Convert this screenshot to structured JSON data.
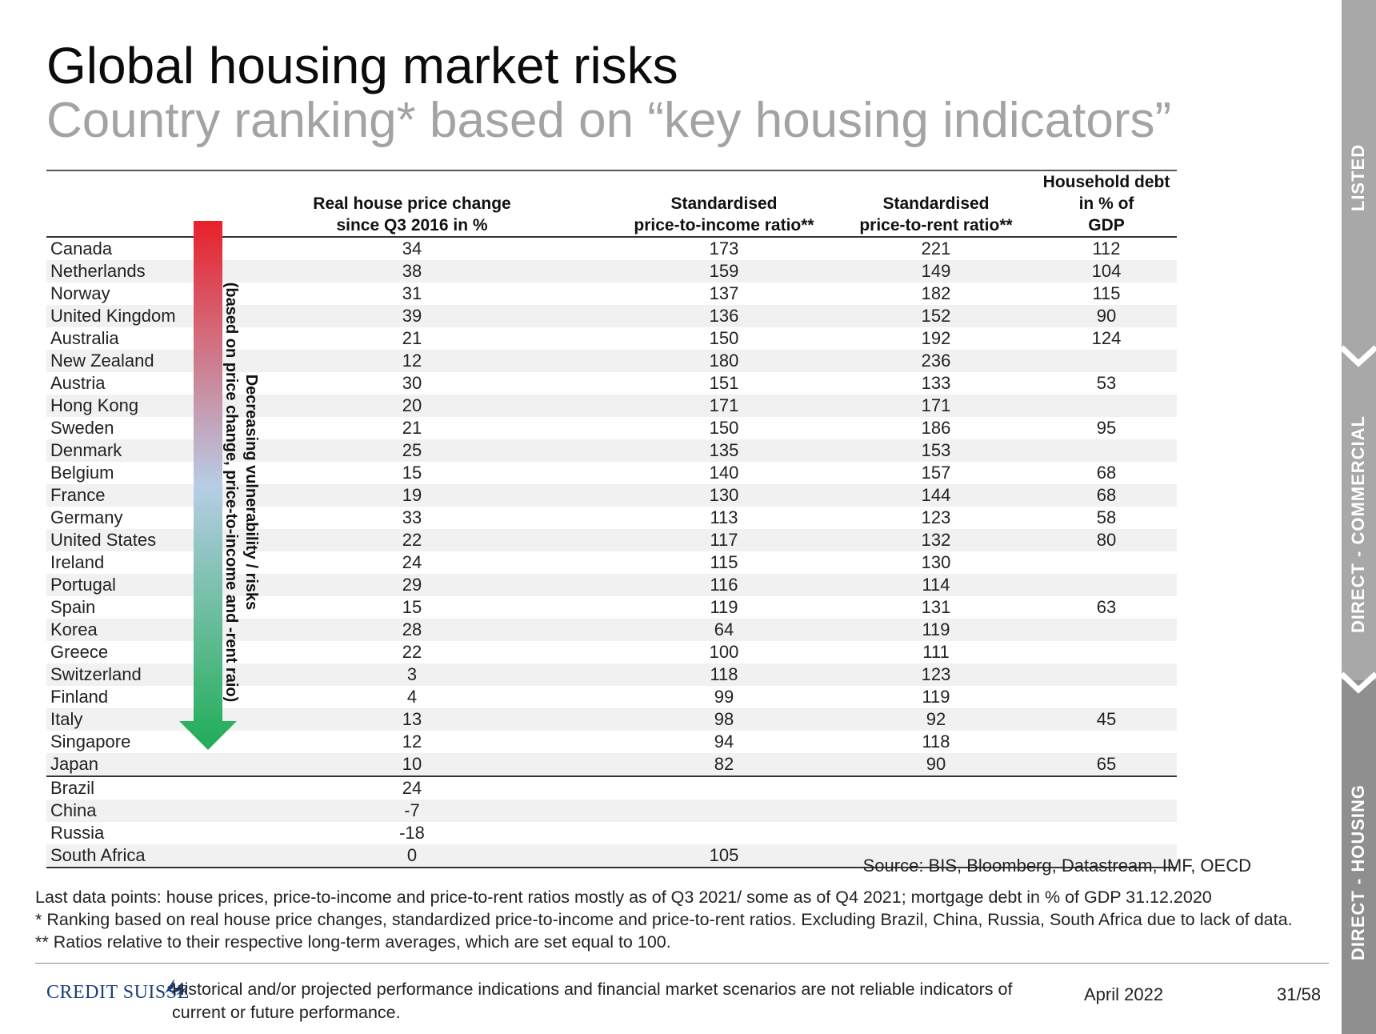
{
  "title": "Global housing market risks",
  "subtitle": "Country ranking* based on “key housing indicators”",
  "table": {
    "headers": [
      {
        "line1": "",
        "line2": ""
      },
      {
        "line1": "Real house price change",
        "line2": "since Q3 2016 in %"
      },
      {
        "line1": "Standardised",
        "line2": "price-to-income ratio**"
      },
      {
        "line1": "Standardised",
        "line2": "price-to-rent ratio**"
      },
      {
        "line1": "Household debt in % of",
        "line2": "GDP"
      }
    ],
    "rows": [
      {
        "country": "Canada",
        "price_change": "34",
        "pti": "173",
        "ptr": "221",
        "debt": "112"
      },
      {
        "country": "Netherlands",
        "price_change": "38",
        "pti": "159",
        "ptr": "149",
        "debt": "104"
      },
      {
        "country": "Norway",
        "price_change": "31",
        "pti": "137",
        "ptr": "182",
        "debt": "115"
      },
      {
        "country": "United Kingdom",
        "price_change": "39",
        "pti": "136",
        "ptr": "152",
        "debt": "90"
      },
      {
        "country": "Australia",
        "price_change": "21",
        "pti": "150",
        "ptr": "192",
        "debt": "124"
      },
      {
        "country": "New Zealand",
        "price_change": "12",
        "pti": "180",
        "ptr": "236",
        "debt": ""
      },
      {
        "country": "Austria",
        "price_change": "30",
        "pti": "151",
        "ptr": "133",
        "debt": "53"
      },
      {
        "country": "Hong Kong",
        "price_change": "20",
        "pti": "171",
        "ptr": "171",
        "debt": ""
      },
      {
        "country": "Sweden",
        "price_change": "21",
        "pti": "150",
        "ptr": "186",
        "debt": "95"
      },
      {
        "country": "Denmark",
        "price_change": "25",
        "pti": "135",
        "ptr": "153",
        "debt": ""
      },
      {
        "country": "Belgium",
        "price_change": "15",
        "pti": "140",
        "ptr": "157",
        "debt": "68"
      },
      {
        "country": "France",
        "price_change": "19",
        "pti": "130",
        "ptr": "144",
        "debt": "68"
      },
      {
        "country": "Germany",
        "price_change": "33",
        "pti": "113",
        "ptr": "123",
        "debt": "58"
      },
      {
        "country": "United States",
        "price_change": "22",
        "pti": "117",
        "ptr": "132",
        "debt": "80"
      },
      {
        "country": "Ireland",
        "price_change": "24",
        "pti": "115",
        "ptr": "130",
        "debt": ""
      },
      {
        "country": "Portugal",
        "price_change": "29",
        "pti": "116",
        "ptr": "114",
        "debt": ""
      },
      {
        "country": "Spain",
        "price_change": "15",
        "pti": "119",
        "ptr": "131",
        "debt": "63"
      },
      {
        "country": "Korea",
        "price_change": "28",
        "pti": "64",
        "ptr": "119",
        "debt": ""
      },
      {
        "country": "Greece",
        "price_change": "22",
        "pti": "100",
        "ptr": "111",
        "debt": ""
      },
      {
        "country": "Switzerland",
        "price_change": "3",
        "pti": "118",
        "ptr": "123",
        "debt": ""
      },
      {
        "country": "Finland",
        "price_change": "4",
        "pti": "99",
        "ptr": "119",
        "debt": ""
      },
      {
        "country": "Italy",
        "price_change": "13",
        "pti": "98",
        "ptr": "92",
        "debt": "45"
      },
      {
        "country": "Singapore",
        "price_change": "12",
        "pti": "94",
        "ptr": "118",
        "debt": ""
      },
      {
        "country": "Japan",
        "price_change": "10",
        "pti": "82",
        "ptr": "90",
        "debt": "65"
      },
      {
        "country": "Brazil",
        "price_change": "24",
        "pti": "",
        "ptr": "",
        "debt": ""
      },
      {
        "country": "China",
        "price_change": "-7",
        "pti": "",
        "ptr": "",
        "debt": ""
      },
      {
        "country": "Russia",
        "price_change": "-18",
        "pti": "",
        "ptr": "",
        "debt": ""
      },
      {
        "country": "South Africa",
        "price_change": "0",
        "pti": "105",
        "ptr": "",
        "debt": ""
      }
    ]
  },
  "arrow": {
    "label_line1": "Decreasing vulnerability / risks",
    "label_line2": "(based on price change, price-to-income and -rent raio)",
    "color_top": "#e8202a",
    "color_mid": "#b7cde6",
    "color_bottom": "#1fad55"
  },
  "source": "Source: BIS, Bloomberg, Datastream, IMF, OECD",
  "footnotes": [
    "Last data points: house prices, price-to-income and price-to-rent ratios mostly as of Q3 2021/ some as of Q4 2021; mortgage debt in % of GDP 31.12.2020",
    "* Ranking based on real house price changes, standardized price-to-income and price-to-rent ratios. Excluding Brazil, China, Russia, South Africa due to lack of data.",
    "** Ratios relative to their respective long-term averages, which are set equal to 100."
  ],
  "footer": {
    "logo_text": "CREDIT SUISSE",
    "logo_icon": "sails-icon",
    "disclaimer": "Historical and/or projected performance indications and financial market scenarios are not reliable indicators of current or future performance.",
    "date": "April 2022",
    "page": "31/58"
  },
  "sidebar": {
    "tabs": [
      {
        "label": "LISTED",
        "active": false
      },
      {
        "label": "DIRECT - COMMERCIAL",
        "active": false
      },
      {
        "label": "DIRECT - HOUSING",
        "active": true
      }
    ]
  }
}
